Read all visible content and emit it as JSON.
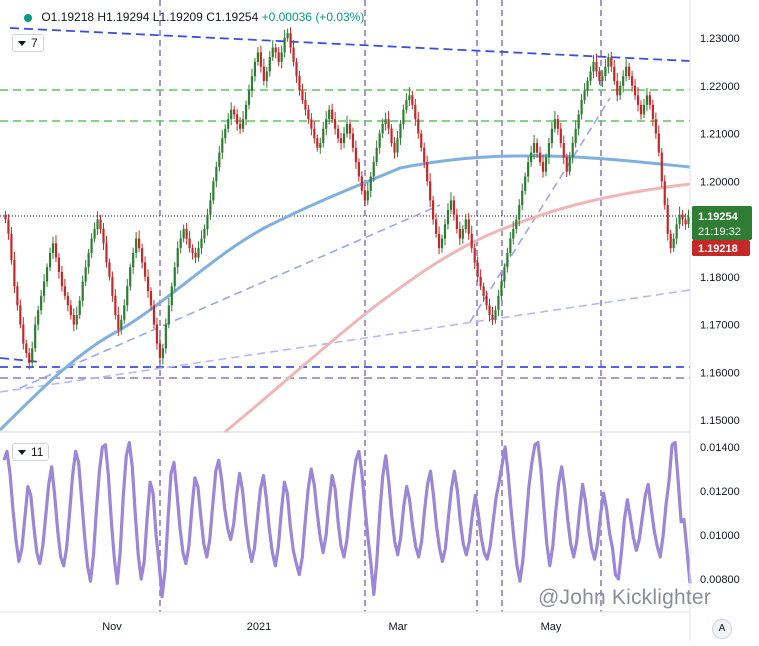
{
  "header": {
    "ohlc_o": "O1.19218",
    "ohlc_h": "H1.19294",
    "ohlc_l": "L1.19209",
    "ohlc_c": "C1.19254",
    "change": "+0.00036 (+0.03%)"
  },
  "main_legend": {
    "count": "7"
  },
  "indicator_legend": {
    "count": "11"
  },
  "watermark": "@John Kicklighter",
  "tv_badge": "A",
  "price_labels": {
    "last": "1.19254",
    "countdown": "21:19:32",
    "open": "1.19218"
  },
  "colors": {
    "up": "#2e7d32",
    "down": "#c62828",
    "sma_blue": "#7fb0de",
    "sma_pink": "#f0b6b6",
    "trend_blue": "#3a4fe0",
    "fib_green": "#5cc85c",
    "event_purple": "#8e7cc3",
    "indicator_line": "#9b87d6",
    "last_bg": "#2e7d32",
    "open_bg": "#c62828"
  },
  "chart_data": [
    {
      "type": "line",
      "subtype": "candlestick",
      "title": "",
      "xlabel": "",
      "ylabel": "",
      "y_ticks": [
        "1.23000",
        "1.22000",
        "1.21000",
        "1.20000",
        "1.18000",
        "1.17000",
        "1.16000",
        "1.15000"
      ],
      "ylim": [
        1.145,
        1.234
      ],
      "x_ticks": [
        "Nov",
        "2021",
        "Mar",
        "May"
      ],
      "grid": false,
      "closes": [
        1.192,
        1.189,
        1.1835,
        1.178,
        1.174,
        1.17,
        1.166,
        1.164,
        1.162,
        1.165,
        1.17,
        1.173,
        1.176,
        1.179,
        1.182,
        1.185,
        1.187,
        1.184,
        1.181,
        1.178,
        1.176,
        1.174,
        1.172,
        1.17,
        1.172,
        1.175,
        1.179,
        1.182,
        1.185,
        1.188,
        1.19,
        1.192,
        1.19,
        1.187,
        1.183,
        1.18,
        1.176,
        1.172,
        1.169,
        1.171,
        1.174,
        1.178,
        1.182,
        1.185,
        1.188,
        1.186,
        1.183,
        1.18,
        1.177,
        1.174,
        1.17,
        1.166,
        1.163,
        1.165,
        1.17,
        1.174,
        1.178,
        1.182,
        1.186,
        1.188,
        1.19,
        1.188,
        1.186,
        1.185,
        1.184,
        1.186,
        1.188,
        1.19,
        1.193,
        1.196,
        1.2,
        1.203,
        1.206,
        1.209,
        1.211,
        1.213,
        1.215,
        1.214,
        1.212,
        1.211,
        1.213,
        1.216,
        1.219,
        1.222,
        1.225,
        1.227,
        1.224,
        1.221,
        1.223,
        1.226,
        1.228,
        1.227,
        1.225,
        1.227,
        1.23,
        1.231,
        1.228,
        1.225,
        1.222,
        1.219,
        1.217,
        1.215,
        1.213,
        1.211,
        1.209,
        1.207,
        1.208,
        1.211,
        1.213,
        1.215,
        1.213,
        1.211,
        1.209,
        1.208,
        1.21,
        1.212,
        1.21,
        1.207,
        1.204,
        1.201,
        1.198,
        1.196,
        1.198,
        1.201,
        1.204,
        1.207,
        1.21,
        1.212,
        1.213,
        1.211,
        1.208,
        1.206,
        1.209,
        1.212,
        1.215,
        1.217,
        1.218,
        1.216,
        1.213,
        1.21,
        1.207,
        1.204,
        1.2,
        1.196,
        1.192,
        1.189,
        1.186,
        1.188,
        1.191,
        1.194,
        1.196,
        1.193,
        1.19,
        1.188,
        1.19,
        1.192,
        1.189,
        1.186,
        1.183,
        1.18,
        1.178,
        1.176,
        1.174,
        1.172,
        1.171,
        1.173,
        1.176,
        1.179,
        1.182,
        1.185,
        1.188,
        1.19,
        1.192,
        1.195,
        1.198,
        1.201,
        1.204,
        1.206,
        1.208,
        1.206,
        1.204,
        1.202,
        1.205,
        1.208,
        1.211,
        1.213,
        1.211,
        1.208,
        1.205,
        1.202,
        1.205,
        1.208,
        1.211,
        1.214,
        1.217,
        1.219,
        1.221,
        1.223,
        1.225,
        1.223,
        1.221,
        1.222,
        1.224,
        1.226,
        1.224,
        1.221,
        1.218,
        1.22,
        1.222,
        1.224,
        1.222,
        1.22,
        1.218,
        1.216,
        1.214,
        1.216,
        1.218,
        1.216,
        1.213,
        1.21,
        1.206,
        1.2,
        1.195,
        1.189,
        1.186,
        1.188,
        1.191,
        1.193,
        1.192,
        1.191,
        1.1925
      ],
      "sma_blue_note": "",
      "indicator": {
        "y_ticks": [
          "0.01400",
          "0.01200",
          "0.01000",
          "0.00800"
        ],
        "ylim": [
          0.0068,
          0.0142
        ],
        "values": [
          0.0134,
          0.0138,
          0.0128,
          0.0112,
          0.0098,
          0.0088,
          0.0094,
          0.0108,
          0.0122,
          0.0118,
          0.0104,
          0.0092,
          0.0087,
          0.0095,
          0.0109,
          0.0123,
          0.0131,
          0.0118,
          0.0102,
          0.009,
          0.0086,
          0.0094,
          0.011,
          0.0127,
          0.0138,
          0.0133,
          0.0117,
          0.01,
          0.0086,
          0.0079,
          0.0091,
          0.0112,
          0.0129,
          0.014,
          0.0141,
          0.0127,
          0.0106,
          0.0089,
          0.0078,
          0.0093,
          0.0118,
          0.0136,
          0.0142,
          0.0131,
          0.011,
          0.0091,
          0.008,
          0.0088,
          0.0108,
          0.0124,
          0.0119,
          0.01,
          0.0087,
          0.0072,
          0.0084,
          0.0107,
          0.0128,
          0.0133,
          0.0119,
          0.0103,
          0.0092,
          0.0087,
          0.0095,
          0.0112,
          0.0126,
          0.0122,
          0.0108,
          0.0096,
          0.009,
          0.0098,
          0.0114,
          0.0129,
          0.0134,
          0.0125,
          0.0112,
          0.0103,
          0.0098,
          0.0105,
          0.0118,
          0.0128,
          0.012,
          0.0106,
          0.0095,
          0.0088,
          0.0094,
          0.0108,
          0.0121,
          0.0127,
          0.0116,
          0.0102,
          0.0092,
          0.0086,
          0.0095,
          0.0111,
          0.0124,
          0.0119,
          0.0104,
          0.0093,
          0.0087,
          0.0082,
          0.009,
          0.0106,
          0.0121,
          0.013,
          0.0123,
          0.011,
          0.0099,
          0.0092,
          0.01,
          0.0115,
          0.0127,
          0.0121,
          0.0106,
          0.0095,
          0.009,
          0.0098,
          0.0112,
          0.0124,
          0.0134,
          0.0138,
          0.0128,
          0.0113,
          0.0099,
          0.0087,
          0.0073,
          0.0088,
          0.011,
          0.0127,
          0.0136,
          0.0124,
          0.0109,
          0.0097,
          0.0091,
          0.0099,
          0.0113,
          0.0122,
          0.0116,
          0.0104,
          0.0095,
          0.009,
          0.0097,
          0.0111,
          0.0123,
          0.0129,
          0.0118,
          0.0104,
          0.0094,
          0.0088,
          0.0094,
          0.0108,
          0.0121,
          0.0129,
          0.012,
          0.0106,
          0.0096,
          0.0091,
          0.0097,
          0.0109,
          0.0118,
          0.011,
          0.0099,
          0.0092,
          0.0089,
          0.0095,
          0.0106,
          0.0117,
          0.0124,
          0.0132,
          0.014,
          0.0128,
          0.0112,
          0.0098,
          0.0086,
          0.0079,
          0.0089,
          0.0106,
          0.0122,
          0.0133,
          0.0141,
          0.0142,
          0.013,
          0.0112,
          0.0096,
          0.0086,
          0.0095,
          0.0111,
          0.0124,
          0.0131,
          0.0121,
          0.0107,
          0.0096,
          0.009,
          0.0097,
          0.0111,
          0.0123,
          0.0115,
          0.0103,
          0.0094,
          0.0089,
          0.0096,
          0.0109,
          0.0119,
          0.0112,
          0.0101,
          0.0094,
          0.0082,
          0.008,
          0.0092,
          0.0107,
          0.0116,
          0.0108,
          0.0099,
          0.0093,
          0.0098,
          0.0108,
          0.0118,
          0.0123,
          0.0112,
          0.0102,
          0.0095,
          0.009,
          0.01,
          0.0114,
          0.0125,
          0.0141,
          0.0142,
          0.0125,
          0.0106,
          0.0107,
          0.0093,
          0.0078
        ]
      }
    }
  ]
}
